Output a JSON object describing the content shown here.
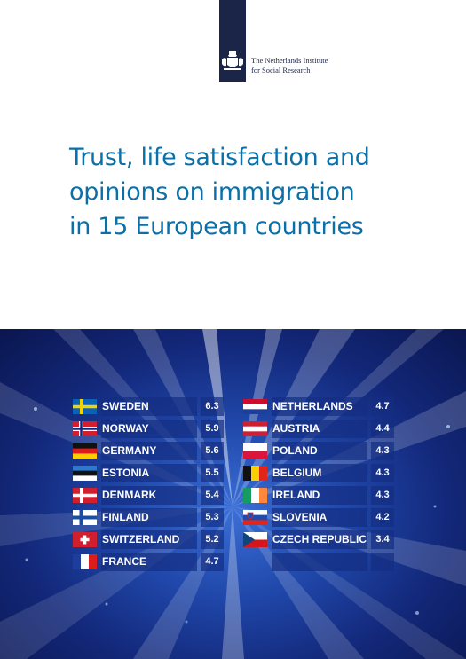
{
  "publisher": {
    "line1": "The Netherlands Institute",
    "line2": "for Social Research"
  },
  "title_lines": [
    "Trust, life satisfaction and",
    "opinions on immigration",
    "in 15 European countries"
  ],
  "left_column": [
    {
      "country": "SWEDEN",
      "score": "6.3",
      "flag": "sweden-flag"
    },
    {
      "country": "NORWAY",
      "score": "5.9",
      "flag": "norway-flag"
    },
    {
      "country": "GERMANY",
      "score": "5.6",
      "flag": "germany-flag"
    },
    {
      "country": "ESTONIA",
      "score": "5.5",
      "flag": "estonia-flag"
    },
    {
      "country": "DENMARK",
      "score": "5.4",
      "flag": "denmark-flag"
    },
    {
      "country": "FINLAND",
      "score": "5.3",
      "flag": "finland-flag"
    },
    {
      "country": "SWITZERLAND",
      "score": "5.2",
      "flag": "switzerland-flag"
    },
    {
      "country": "FRANCE",
      "score": "4.7",
      "flag": "france-flag"
    }
  ],
  "right_column": [
    {
      "country": "NETHERLANDS",
      "score": "4.7",
      "flag": "netherlands-flag"
    },
    {
      "country": "AUSTRIA",
      "score": "4.4",
      "flag": "austria-flag"
    },
    {
      "country": "POLAND",
      "score": "4.3",
      "flag": "poland-flag"
    },
    {
      "country": "BELGIUM",
      "score": "4.3",
      "flag": "belgium-flag"
    },
    {
      "country": "IRELAND",
      "score": "4.3",
      "flag": "ireland-flag"
    },
    {
      "country": "SLOVENIA",
      "score": "4.2",
      "flag": "slovenia-flag"
    },
    {
      "country": "CZECH REPUBLIC",
      "score": "3.4",
      "flag": "czech-flag"
    }
  ],
  "colors": {
    "title": "#0b70a8",
    "ribbon": "#1b2548",
    "board_cell": "#142d82"
  }
}
